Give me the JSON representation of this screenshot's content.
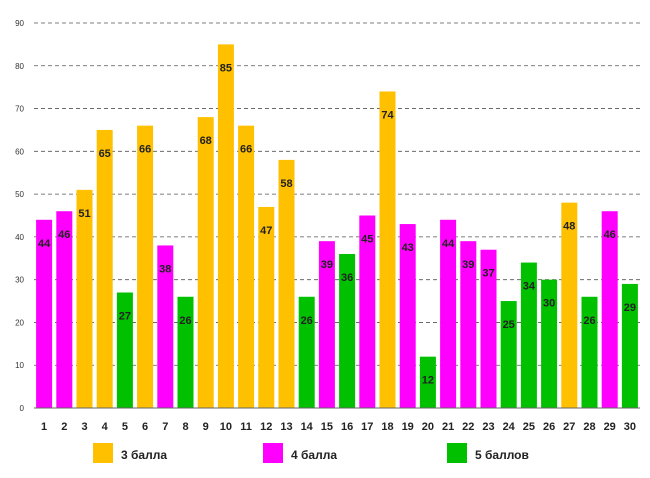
{
  "chart_data": {
    "type": "bar",
    "title": "",
    "xlabel": "",
    "ylabel": "",
    "ylim": [
      0,
      90
    ],
    "yticks": [
      0,
      10,
      20,
      30,
      40,
      50,
      60,
      70,
      80,
      90
    ],
    "grid": true,
    "legend_position": "bottom",
    "categories": [
      "1",
      "2",
      "3",
      "4",
      "5",
      "6",
      "7",
      "8",
      "9",
      "10",
      "11",
      "12",
      "13",
      "14",
      "15",
      "16",
      "17",
      "18",
      "19",
      "20",
      "21",
      "22",
      "23",
      "24",
      "25",
      "26",
      "27",
      "28",
      "29",
      "30"
    ],
    "values": [
      44,
      46,
      51,
      65,
      27,
      66,
      38,
      26,
      68,
      85,
      66,
      47,
      58,
      26,
      39,
      36,
      45,
      74,
      43,
      12,
      44,
      39,
      37,
      25,
      34,
      30,
      48,
      26,
      46,
      29
    ],
    "groups": [
      4,
      4,
      3,
      3,
      5,
      3,
      4,
      5,
      3,
      3,
      3,
      3,
      3,
      5,
      4,
      5,
      4,
      3,
      4,
      5,
      4,
      4,
      4,
      5,
      5,
      5,
      3,
      5,
      4,
      5
    ],
    "series": [
      {
        "name": "3 балла",
        "key": 3,
        "color": "#FFC000"
      },
      {
        "name": "4 балла",
        "key": 4,
        "color": "#FF00FF"
      },
      {
        "name": "5 баллов",
        "key": 5,
        "color": "#00C000"
      }
    ]
  }
}
